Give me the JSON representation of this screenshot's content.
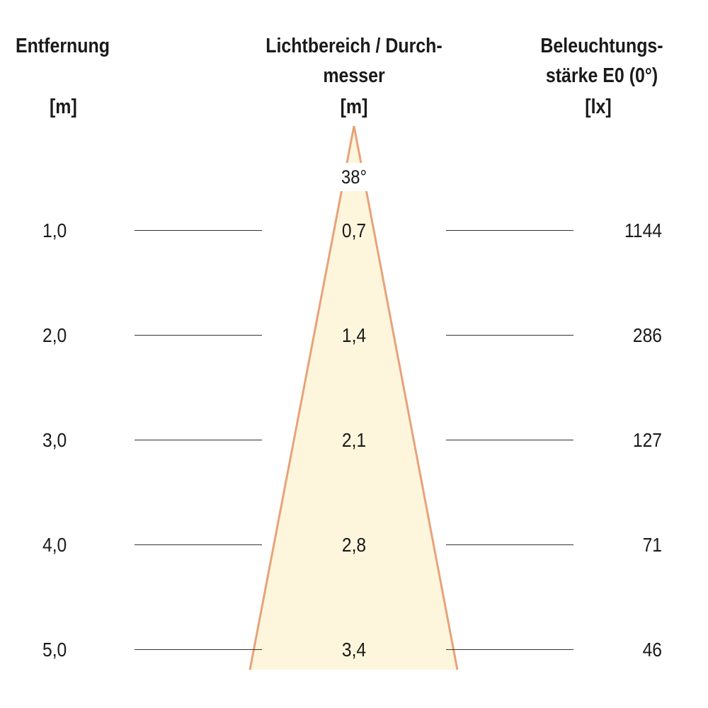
{
  "header": {
    "distance_title": "Entfernung",
    "distance_unit": "[m]",
    "diameter_title_line1": "Lichtbereich / Durch-",
    "diameter_title_line2": "messer",
    "diameter_unit": "[m]",
    "illuminance_title_line1": "Beleuchtungs-",
    "illuminance_title_line2": "stärke E0 (0°)",
    "illuminance_unit": "[lx]"
  },
  "beam": {
    "angle_label": "38°",
    "fill_color": "#fdf6dc",
    "edge_color": "#e8a27a"
  },
  "rows": [
    {
      "distance": "1,0",
      "diameter": "0,7",
      "illuminance": "1144"
    },
    {
      "distance": "2,0",
      "diameter": "1,4",
      "illuminance": "286"
    },
    {
      "distance": "3,0",
      "diameter": "2,1",
      "illuminance": "127"
    },
    {
      "distance": "4,0",
      "diameter": "2,8",
      "illuminance": "71"
    },
    {
      "distance": "5,0",
      "diameter": "3,4",
      "illuminance": "46"
    }
  ]
}
